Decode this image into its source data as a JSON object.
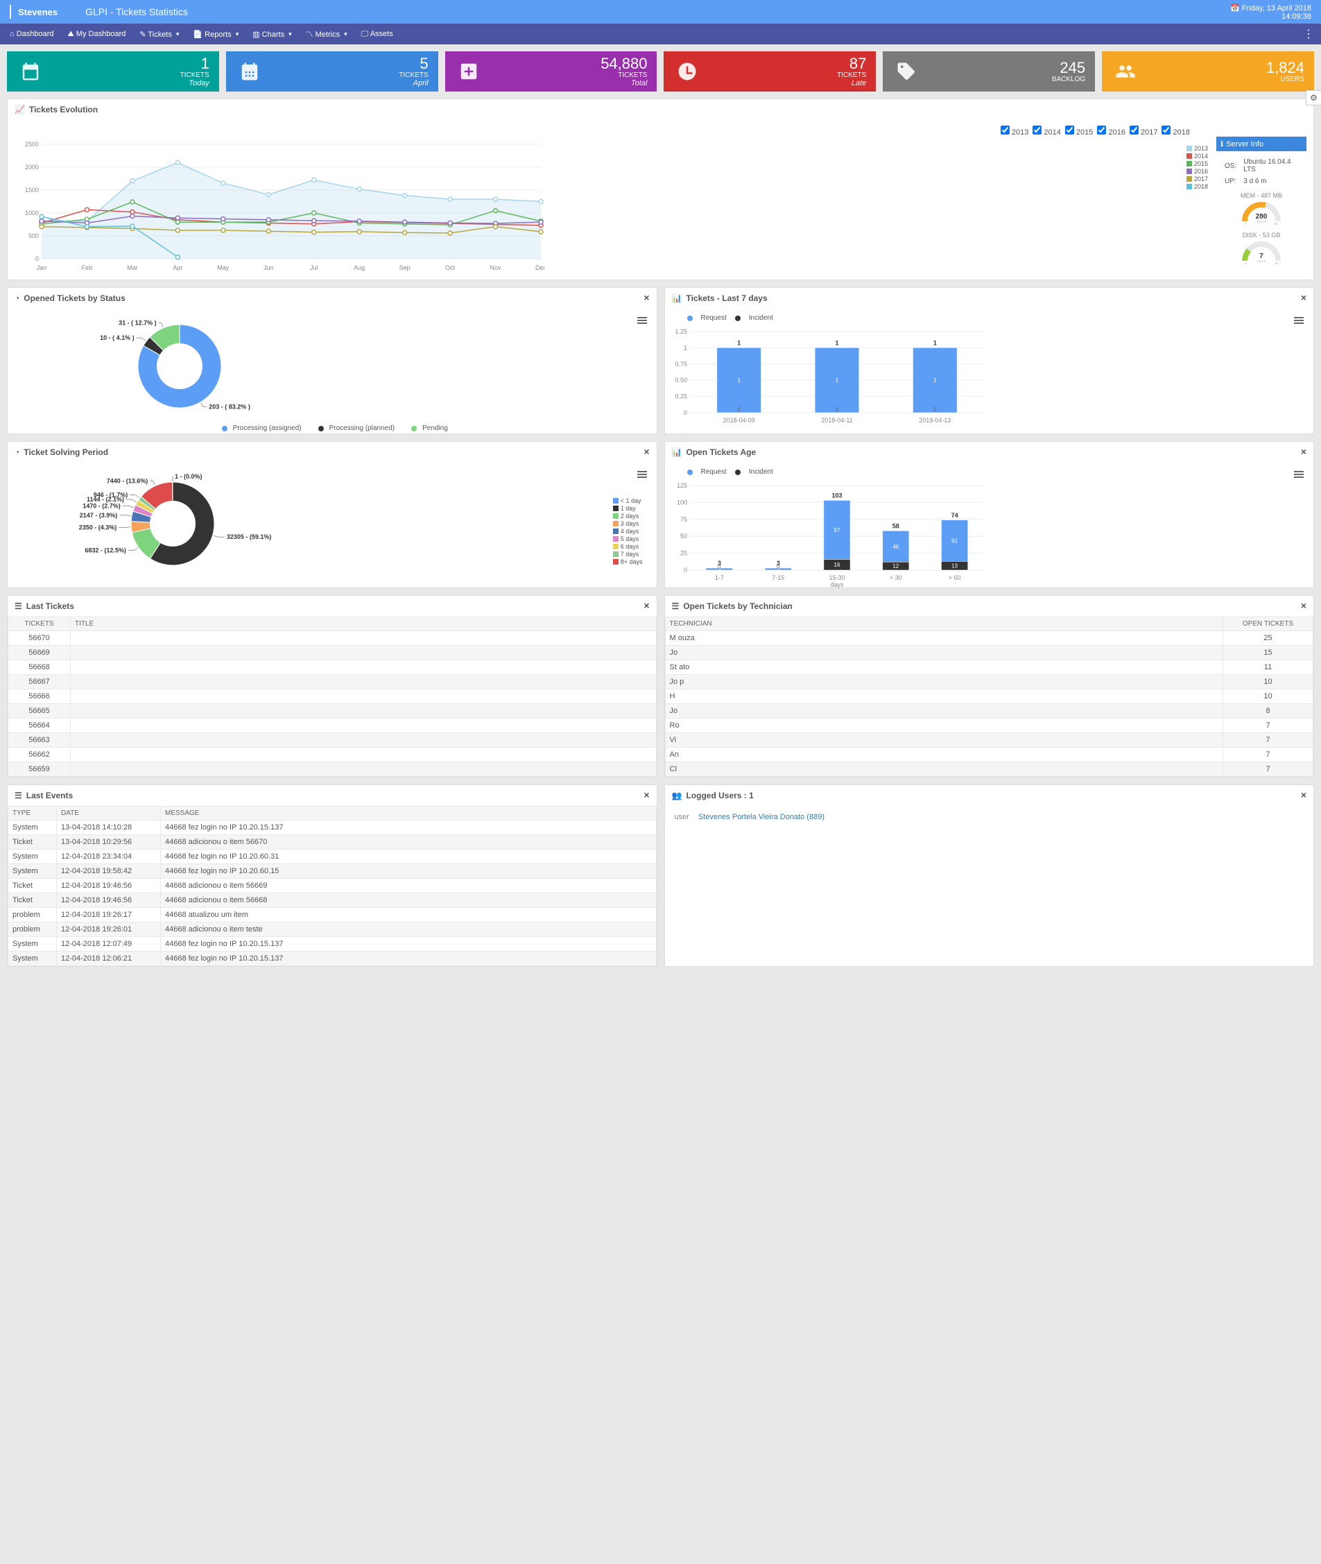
{
  "header": {
    "brand": "Stevenes",
    "title": "GLPI - Tickets Statistics",
    "date": "Friday, 13 April 2018",
    "time": "14:09:38"
  },
  "nav": {
    "items": [
      {
        "label": "Dashboard",
        "icon": "dashboard"
      },
      {
        "label": "My Dashboard",
        "icon": "area-chart"
      },
      {
        "label": "Tickets",
        "icon": "edit",
        "dropdown": true
      },
      {
        "label": "Reports",
        "icon": "file",
        "dropdown": true
      },
      {
        "label": "Charts",
        "icon": "bar-chart",
        "dropdown": true
      },
      {
        "label": "Metrics",
        "icon": "line-chart",
        "dropdown": true
      },
      {
        "label": "Assets",
        "icon": "monitor"
      }
    ]
  },
  "cards": [
    {
      "value": "1",
      "label": "TICKETS",
      "sub": "Today",
      "bg": "#00a199",
      "icon": "calendar"
    },
    {
      "value": "5",
      "label": "TICKETS",
      "sub": "April",
      "bg": "#3b87dd",
      "icon": "calendar-grid"
    },
    {
      "value": "54,880",
      "label": "TICKETS",
      "sub": "Total",
      "bg": "#9a2fae",
      "icon": "plus-square"
    },
    {
      "value": "87",
      "label": "TICKETS",
      "sub": "Late",
      "bg": "#d32f2f",
      "icon": "clock"
    },
    {
      "value": "245",
      "label": "BACKLOG",
      "sub": "",
      "bg": "#7a7a7a",
      "icon": "tag"
    },
    {
      "value": "1,824",
      "label": "USERS",
      "sub": "",
      "bg": "#f5a623",
      "icon": "users"
    }
  ],
  "evolution": {
    "title": "Tickets Evolution",
    "years": [
      "2013",
      "2014",
      "2015",
      "2016",
      "2017",
      "2018"
    ],
    "months": [
      "Jan",
      "Feb",
      "Mar",
      "Apr",
      "May",
      "Jun",
      "Jul",
      "Aug",
      "Sep",
      "Oct",
      "Nov",
      "Dec"
    ],
    "ylim": [
      0,
      2500
    ],
    "ystep": 500,
    "legend_colors": {
      "2013": "#a6d4ec",
      "2014": "#d9534f",
      "2015": "#5cb85c",
      "2016": "#8e6cc0",
      "2017": "#b8a63c",
      "2018": "#5bc0de"
    },
    "series": {
      "2013": [
        830,
        820,
        1700,
        2100,
        1650,
        1400,
        1720,
        1520,
        1380,
        1300,
        1300,
        1250
      ],
      "2014": [
        780,
        1070,
        1020,
        850,
        800,
        780,
        760,
        810,
        790,
        770,
        750,
        730
      ],
      "2015": [
        760,
        860,
        1240,
        800,
        800,
        800,
        1000,
        780,
        760,
        740,
        1050,
        820
      ],
      "2016": [
        820,
        780,
        930,
        890,
        870,
        850,
        830,
        820,
        800,
        780,
        770,
        800
      ],
      "2017": [
        700,
        680,
        660,
        620,
        620,
        600,
        580,
        590,
        570,
        560,
        700,
        590
      ],
      "2018": [
        920,
        700,
        710,
        35,
        null,
        null,
        null,
        null,
        null,
        null,
        null,
        null
      ]
    }
  },
  "server": {
    "title": "Server Info",
    "os_label": "OS:",
    "os_value": "Ubuntu 16.04.4 LTS",
    "up_label": "UP:",
    "up_value": "3 d 6 m",
    "mem_label": "MEM - 487 MB",
    "mem_value": "280",
    "mem_pct": "57.5 %",
    "mem_max": "487",
    "disk_label": "DISK - 53 GB",
    "disk_value": "7",
    "disk_pct": "13.2 %",
    "disk_max": "53"
  },
  "opened_status": {
    "title": "Opened Tickets by Status",
    "slices": [
      {
        "label": "203 - ( 83.2% )",
        "color": "#5c9df5",
        "name": "Processing (assigned)",
        "value": 83.2
      },
      {
        "label": "10 - ( 4.1% )",
        "color": "#333333",
        "name": "Processing (planned)",
        "value": 4.1
      },
      {
        "label": "31 - ( 12.7% )",
        "color": "#7ed47e",
        "name": "Pending",
        "value": 12.7
      }
    ]
  },
  "last7": {
    "title": "Tickets - Last 7 days",
    "legend": [
      {
        "name": "Request",
        "color": "#5c9df5"
      },
      {
        "name": "Incident",
        "color": "#333333"
      }
    ],
    "ylim": [
      0,
      1.25
    ],
    "ystep": 0.25,
    "categories": [
      "2018-04-09",
      "2018-04-11",
      "2018-04-13"
    ],
    "request": [
      1,
      1,
      1
    ],
    "incident": [
      0,
      0,
      0
    ]
  },
  "solving": {
    "title": "Ticket Solving Period",
    "slices": [
      {
        "label": "1 - (0.0%)",
        "value": 0.01,
        "color": "#5c9df5",
        "name": "< 1 day"
      },
      {
        "label": "32305 - (59.1%)",
        "value": 59.1,
        "color": "#333333",
        "name": "1 day"
      },
      {
        "label": "6832 - (12.5%)",
        "value": 12.5,
        "color": "#7ed47e",
        "name": "2 days"
      },
      {
        "label": "2350 - (4.3%)",
        "value": 4.3,
        "color": "#f6a35c",
        "name": "3 days"
      },
      {
        "label": "2147 - (3.9%)",
        "value": 3.9,
        "color": "#4a74b5",
        "name": "4 days"
      },
      {
        "label": "1470 - (2.7%)",
        "value": 2.7,
        "color": "#e084c7",
        "name": "5 days"
      },
      {
        "label": "1144 - (2.1%)",
        "value": 2.1,
        "color": "#e8d354",
        "name": "6 days"
      },
      {
        "label": "946 - (1.7%)",
        "value": 1.7,
        "color": "#8fc98f",
        "name": "7 days"
      },
      {
        "label": "7440 - (13.6%)",
        "value": 13.6,
        "color": "#dd4b4b",
        "name": "8+ days"
      }
    ]
  },
  "open_age": {
    "title": "Open Tickets Age",
    "legend": [
      {
        "name": "Request",
        "color": "#5c9df5"
      },
      {
        "name": "Incident",
        "color": "#333333"
      }
    ],
    "ylim": [
      0,
      125
    ],
    "ystep": 25,
    "categories": [
      "1-7",
      "7-15",
      "15-30",
      "> 30",
      "> 60"
    ],
    "xaxis_label": "days",
    "totals": [
      "3",
      "3",
      "103",
      "58",
      "74"
    ],
    "request": [
      3,
      3,
      87,
      46,
      61
    ],
    "incident": [
      0,
      0,
      16,
      12,
      13
    ]
  },
  "last_tickets": {
    "title": "Last Tickets",
    "cols": [
      "TICKETS",
      "TITLE"
    ],
    "rows": [
      [
        "56670",
        ""
      ],
      [
        "56669",
        ""
      ],
      [
        "56668",
        ""
      ],
      [
        "56667",
        ""
      ],
      [
        "56666",
        ""
      ],
      [
        "56665",
        ""
      ],
      [
        "56664",
        ""
      ],
      [
        "56663",
        ""
      ],
      [
        "56662",
        ""
      ],
      [
        "56659",
        ""
      ]
    ]
  },
  "by_tech": {
    "title": "Open Tickets by Technician",
    "cols": [
      "TECHNICIAN",
      "OPEN TICKETS"
    ],
    "rows": [
      [
        "M                               ouza",
        "25"
      ],
      [
        "Jo",
        "15"
      ],
      [
        "St                              ato",
        "11"
      ],
      [
        "Jo                              p",
        "10"
      ],
      [
        "H",
        "10"
      ],
      [
        "Jo",
        "8"
      ],
      [
        "Ro",
        "7"
      ],
      [
        "Vi",
        "7"
      ],
      [
        "An",
        "7"
      ],
      [
        "Cl",
        "7"
      ]
    ]
  },
  "last_events": {
    "title": "Last Events",
    "cols": [
      "TYPE",
      "DATE",
      "MESSAGE"
    ],
    "rows": [
      [
        "System",
        "13-04-2018 14:10:28",
        "44668 fez login no IP 10.20.15.137"
      ],
      [
        "Ticket",
        "13-04-2018 10:29:56",
        "44668 adicionou o item 56670"
      ],
      [
        "System",
        "12-04-2018 23:34:04",
        "44668 fez login no IP 10.20.60.31"
      ],
      [
        "System",
        "12-04-2018 19:58:42",
        "44668 fez login no IP 10.20.60.15"
      ],
      [
        "Ticket",
        "12-04-2018 19:46:56",
        "44668 adicionou o item 56669"
      ],
      [
        "Ticket",
        "12-04-2018 19:46:56",
        "44668 adicionou o item 56668"
      ],
      [
        "problem",
        "12-04-2018 19:26:17",
        "44668 atualizou um item"
      ],
      [
        "problem",
        "12-04-2018 19:26:01",
        "44668 adicionou o item teste"
      ],
      [
        "System",
        "12-04-2018 12:07:49",
        "44668 fez login no IP 10.20.15.137"
      ],
      [
        "System",
        "12-04-2018 12:06:21",
        "44668 fez login no IP 10.20.15.137"
      ]
    ]
  },
  "logged": {
    "title": "Logged Users : 1",
    "type_label": "user",
    "user": "Stevenes Portela Vieira Donato (889)"
  }
}
